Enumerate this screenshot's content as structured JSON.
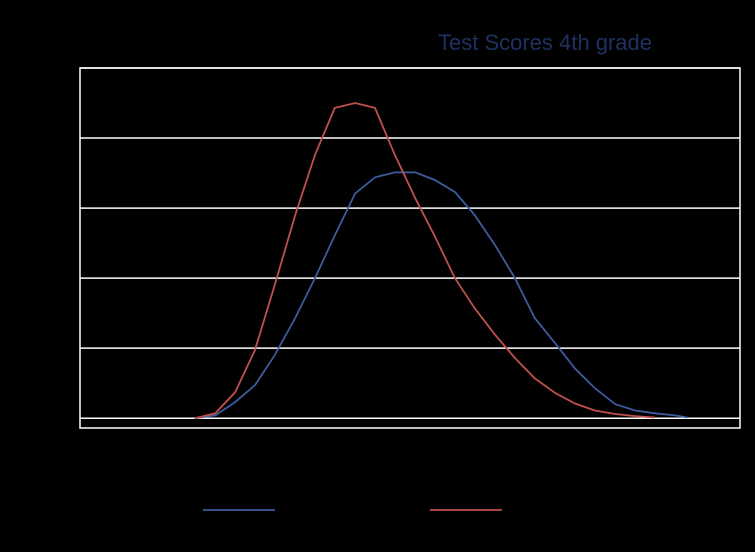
{
  "chart_data": {
    "type": "line",
    "title": "Test Scores 4th grade",
    "x": [
      17.4,
      20.5,
      23.5,
      26.5,
      29.5,
      32.6,
      35.6,
      38.6,
      41.7,
      44.7,
      47.7,
      50.8,
      53.8,
      56.8,
      59.8,
      62.9,
      65.9,
      68.9,
      72.0,
      75.0,
      78.0,
      81.1,
      84.1,
      87.1,
      90.2,
      92.0
    ],
    "series": [
      {
        "color": "#3b5c9e",
        "values": [
          0,
          0.04,
          0.23,
          0.47,
          0.9,
          1.43,
          2.0,
          2.61,
          3.21,
          3.44,
          3.51,
          3.51,
          3.4,
          3.23,
          2.9,
          2.47,
          2.0,
          1.43,
          1.07,
          0.71,
          0.43,
          0.2,
          0.11,
          0.07,
          0.04,
          0.01
        ]
      },
      {
        "color": "#c0504d",
        "values": [
          0,
          0.07,
          0.37,
          0.97,
          1.9,
          2.9,
          3.76,
          4.43,
          4.5,
          4.43,
          3.76,
          3.14,
          2.59,
          2.0,
          1.57,
          1.19,
          0.86,
          0.57,
          0.36,
          0.21,
          0.11,
          0.06,
          0.03,
          0.01,
          null,
          null
        ]
      }
    ],
    "xlim": [
      0,
      100
    ],
    "ylim": [
      -0.14,
      5
    ],
    "yticks": [
      0,
      1,
      2,
      3,
      4,
      5
    ],
    "grid": true
  }
}
